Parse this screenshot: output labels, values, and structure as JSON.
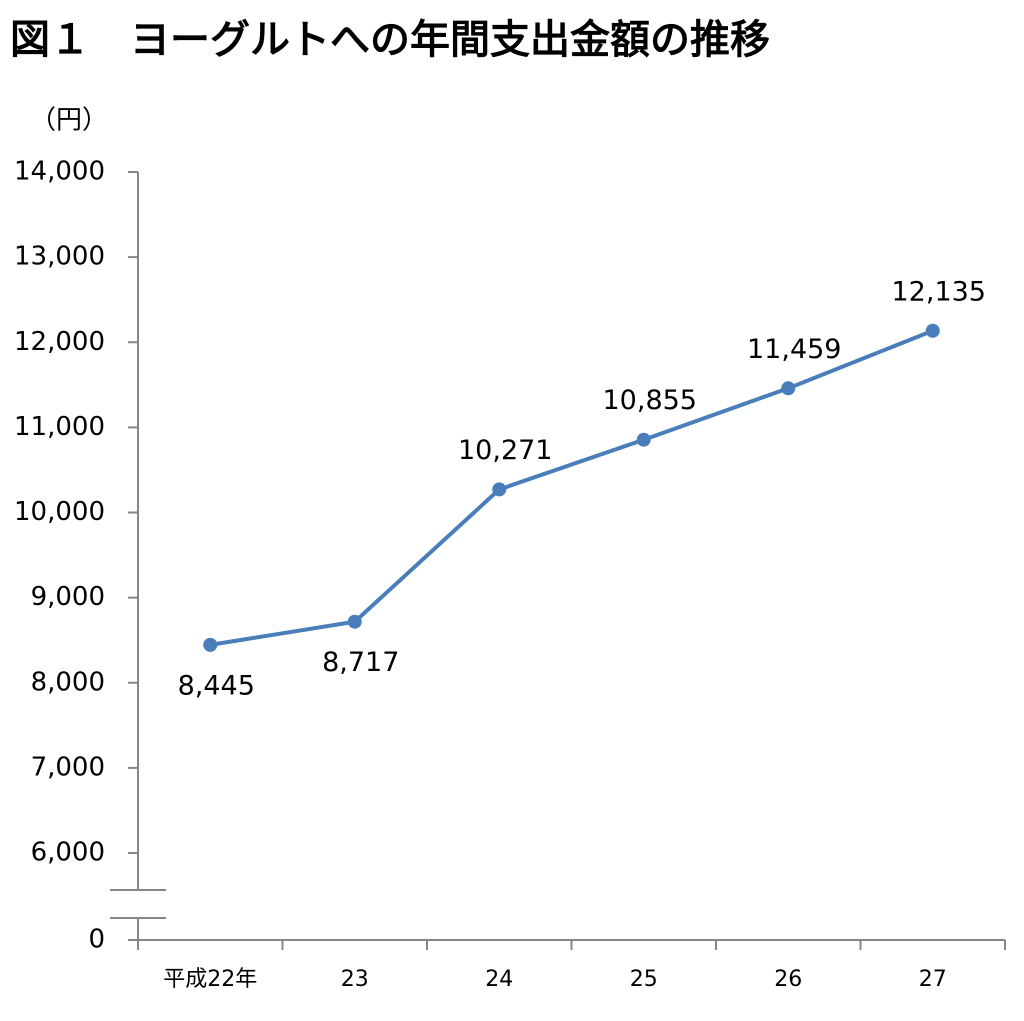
{
  "chart_data": {
    "type": "line",
    "title": "図１　ヨーグルトへの年間支出金額の推移",
    "y_unit_label": "（円）",
    "categories": [
      "平成22年",
      "23",
      "24",
      "25",
      "26",
      "27"
    ],
    "series": [
      {
        "name": "ヨーグルト",
        "color": "#4a7ebb",
        "values": [
          8445,
          8717,
          10271,
          10855,
          11459,
          12135
        ],
        "value_labels": [
          "8,445",
          "8,717",
          "10,271",
          "10,855",
          "11,459",
          "12,135"
        ],
        "value_label_positions": [
          "below",
          "below",
          "above",
          "above",
          "above",
          "above"
        ]
      }
    ],
    "ylim": [
      0,
      14000
    ],
    "yticks": [
      0,
      {
        "value": 6000,
        "label": "6,000"
      },
      {
        "value": 7000,
        "label": "7,000"
      },
      {
        "value": 8000,
        "label": "8,000"
      },
      {
        "value": 9000,
        "label": "9,000"
      },
      {
        "value": 10000,
        "label": "10,000"
      },
      {
        "value": 11000,
        "label": "11,000"
      },
      {
        "value": 12000,
        "label": "12,000"
      },
      {
        "value": 13000,
        "label": "13,000"
      },
      {
        "value": 14000,
        "label": "14,000"
      }
    ],
    "y_axis_break": true,
    "grid": false
  }
}
